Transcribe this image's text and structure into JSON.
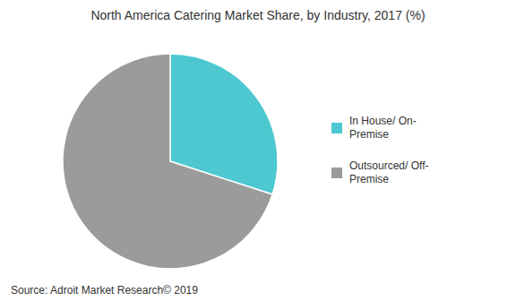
{
  "chart_data": {
    "type": "pie",
    "title": "North America Catering Market Share, by Industry,  2017  (%)",
    "categories": [
      "In House/ On-\nPremise",
      "Outsourced/ Off-\nPremise"
    ],
    "values": [
      30,
      70
    ],
    "colors": [
      "#4dc8d0",
      "#9b9b9b"
    ],
    "legend": "right",
    "source": "Source: Adroit Market Research©  2019"
  }
}
